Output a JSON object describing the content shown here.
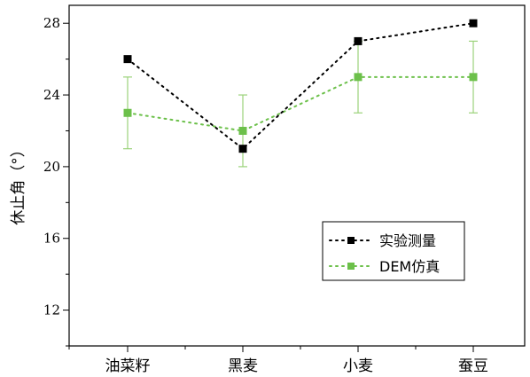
{
  "chart_data": {
    "type": "line",
    "categories": [
      "油菜籽",
      "黑麦",
      "小麦",
      "蚕豆"
    ],
    "ylabel": "休止角（°）",
    "ylim": [
      10,
      29
    ],
    "yticks": [
      12,
      16,
      20,
      24,
      28
    ],
    "grid": false,
    "legend_position": "bottom-right",
    "series": [
      {
        "name": "实验测量",
        "values": [
          26,
          21,
          27,
          28
        ],
        "color": "#000000",
        "marker": "square",
        "line_style": "dotted"
      },
      {
        "name": "DEM仿真",
        "values": [
          23,
          22,
          25,
          25
        ],
        "error": [
          2,
          2,
          2,
          2
        ],
        "color": "#6cc04a",
        "error_color": "#9bd27a",
        "marker": "square",
        "line_style": "dotted"
      }
    ]
  }
}
